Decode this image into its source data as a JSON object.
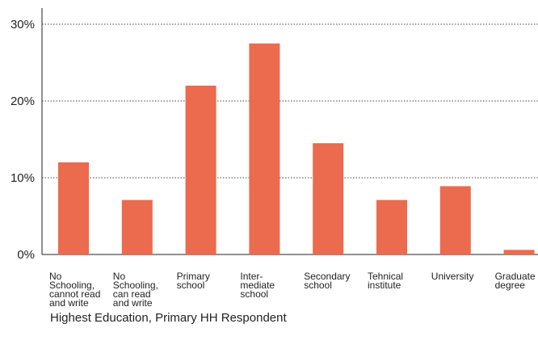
{
  "chart_data": {
    "type": "bar",
    "categories": [
      [
        "No",
        "Schooling,",
        "cannot read",
        "and write"
      ],
      [
        "No",
        "Schooling,",
        "can read",
        "and write"
      ],
      [
        "Primary",
        "school"
      ],
      [
        "Inter-",
        "mediate",
        "school"
      ],
      [
        "Secondary",
        "school"
      ],
      [
        "Tehnical",
        "institute"
      ],
      [
        "University"
      ],
      [
        "Graduate",
        "degree"
      ]
    ],
    "values": [
      12.0,
      7.1,
      22.0,
      27.5,
      14.5,
      7.1,
      8.9,
      0.6
    ],
    "ylim": [
      0,
      30
    ],
    "yticks": [
      0,
      10,
      20,
      30
    ],
    "ytick_labels": [
      "0%",
      "10%",
      "20%",
      "30%"
    ],
    "grid": true,
    "xlabel": "Highest Education, Primary HH Respondent",
    "ylabel": "",
    "bar_color": "#ec6a4e",
    "grid_color": "#444444",
    "axis_color": "#222222"
  }
}
